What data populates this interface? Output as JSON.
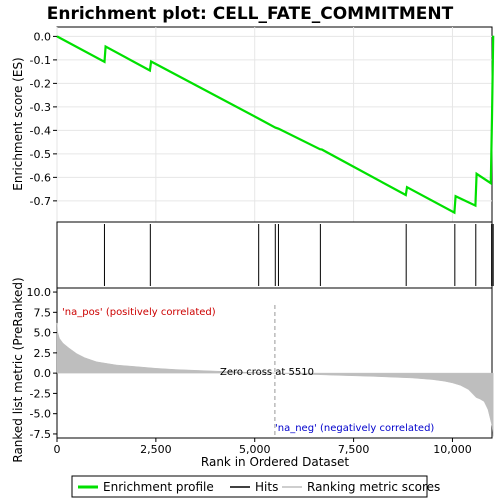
{
  "chart_data": [
    {
      "type": "line",
      "title": "Enrichment plot: CELL_FATE_COMMITMENT",
      "ylabel": "Enrichment score (ES)",
      "xlim": [
        0,
        11000
      ],
      "ylim": [
        -0.79,
        0.04
      ],
      "yticks": [
        0.0,
        -0.1,
        -0.2,
        -0.3,
        -0.4,
        -0.5,
        -0.6,
        -0.7
      ],
      "ytick_labels": [
        "0.0",
        "-0.1",
        "-0.2",
        "-0.3",
        "-0.4",
        "-0.5",
        "-0.6",
        "-0.7"
      ],
      "series": [
        {
          "name": "Enrichment profile",
          "color": "#00e000",
          "x": [
            0,
            1200,
            1230,
            2350,
            2380,
            5100,
            5520,
            5600,
            6650,
            6700,
            8820,
            8850,
            10050,
            10080,
            10580,
            10610,
            10970,
            11000,
            11030
          ],
          "y": [
            0.0,
            -0.108,
            -0.043,
            -0.145,
            -0.107,
            -0.35,
            -0.388,
            -0.393,
            -0.48,
            -0.482,
            -0.675,
            -0.642,
            -0.75,
            -0.68,
            -0.72,
            -0.585,
            -0.625,
            -0.345,
            0.003
          ]
        }
      ]
    },
    {
      "type": "hits",
      "series_name": "Hits",
      "hit_positions": [
        1200,
        2360,
        5100,
        5520,
        5600,
        6660,
        8830,
        10060,
        10590,
        10990,
        11030
      ],
      "colorbar_colors": [
        "#d80000",
        "#f03030",
        "#f87070",
        "#f89090",
        "#f8c0e0",
        "#ffd8f0",
        "#d8d8f8",
        "#b8b8f0",
        "#8888f0",
        "#5050e0",
        "#1010c8"
      ]
    },
    {
      "type": "area",
      "title": "",
      "xlabel": "Rank in Ordered Dataset",
      "ylabel": "Ranked list metric (PreRanked)",
      "xlim": [
        0,
        11000
      ],
      "ylim": [
        -8.0,
        10.5
      ],
      "xticks": [
        0,
        2500,
        5000,
        7500,
        10000
      ],
      "xtick_labels": [
        "0",
        "2,500",
        "5,000",
        "7,500",
        "10,000"
      ],
      "yticks": [
        10.0,
        7.5,
        5.0,
        2.5,
        0.0,
        -2.5,
        -5.0,
        -7.5
      ],
      "ytick_labels": [
        "10.0",
        "7.5",
        "5.0",
        "2.5",
        "0.0",
        "-2.5",
        "-5.0",
        "-7.5"
      ],
      "series": [
        {
          "name": "Ranking metric scores",
          "color": "#bebebe",
          "x": [
            0,
            20,
            60,
            150,
            300,
            500,
            700,
            1000,
            1500,
            2000,
            2500,
            3000,
            3500,
            4000,
            4500,
            5000,
            5510,
            6000,
            7000,
            8000,
            9000,
            9500,
            9800,
            10000,
            10200,
            10400,
            10500,
            10600,
            10700,
            10800,
            10850,
            10900,
            10950,
            11000,
            11030
          ],
          "y": [
            6.2,
            5.0,
            4.3,
            3.7,
            3.1,
            2.4,
            1.9,
            1.4,
            1.0,
            0.8,
            0.6,
            0.45,
            0.35,
            0.25,
            0.15,
            0.08,
            0.0,
            -0.1,
            -0.25,
            -0.4,
            -0.6,
            -0.8,
            -1.0,
            -1.2,
            -1.5,
            -2.0,
            -2.5,
            -3.0,
            -3.2,
            -3.5,
            -4.0,
            -4.5,
            -5.5,
            -6.5,
            -7.8
          ]
        }
      ],
      "annotations": {
        "pos_label": "'na_pos' (positively correlated)",
        "neg_label": "'na_neg' (negatively correlated)",
        "zero_cross": "Zero cross at 5510",
        "zero_cross_x": 5510
      }
    }
  ],
  "legend": {
    "items": [
      {
        "label": "Enrichment profile",
        "color": "#00e000"
      },
      {
        "label": "Hits",
        "color": "#000000"
      },
      {
        "label": "Ranking metric scores",
        "color": "#bebebe"
      }
    ]
  }
}
